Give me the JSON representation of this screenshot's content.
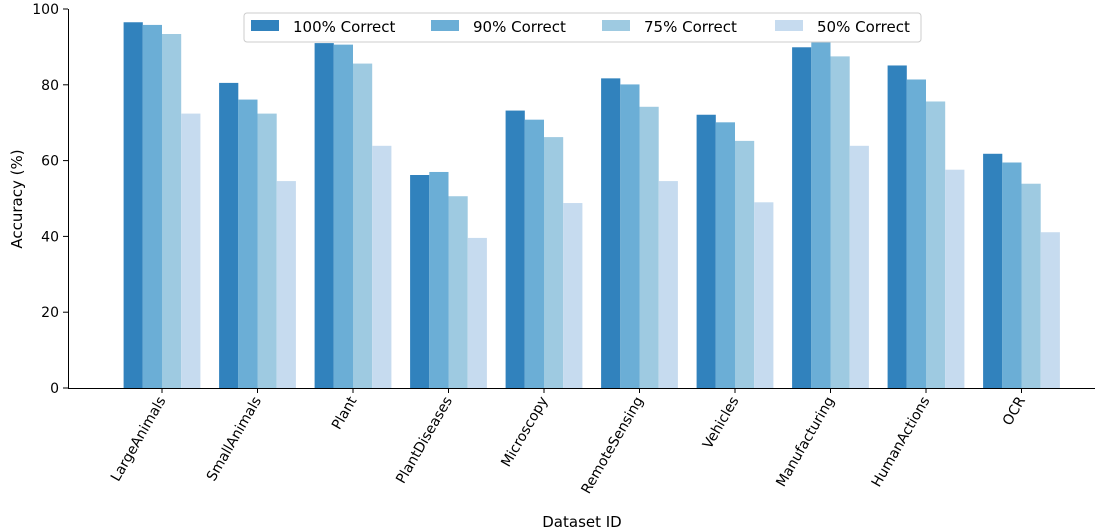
{
  "chart_data": {
    "type": "bar",
    "title": "",
    "xlabel": "Dataset ID",
    "ylabel": "Accuracy (%)",
    "ylim": [
      0,
      100
    ],
    "yticks": [
      0,
      20,
      40,
      60,
      80,
      100
    ],
    "grid": false,
    "legend_position": "top-center",
    "categories": [
      "LargeAnimals",
      "SmallAnimals",
      "Plant",
      "PlantDiseases",
      "Microscopy",
      "RemoteSensing",
      "Vehicles",
      "Manufacturing",
      "HumanActions",
      "OCR"
    ],
    "series": [
      {
        "name": "100% Correct",
        "color": "#3182bd",
        "values": [
          96.5,
          80.5,
          91,
          56.2,
          73.2,
          81.7,
          72.1,
          89.9,
          85.1,
          61.8
        ]
      },
      {
        "name": "90% Correct",
        "color": "#6baed6",
        "values": [
          95.8,
          76.1,
          90.6,
          57,
          70.8,
          80.1,
          70.1,
          91.5,
          81.4,
          59.5
        ]
      },
      {
        "name": "75% Correct",
        "color": "#9ecae1",
        "values": [
          93.4,
          72.4,
          85.6,
          50.6,
          66.2,
          74.2,
          65.2,
          87.5,
          75.6,
          53.9
        ]
      },
      {
        "name": "50% Correct",
        "color": "#c6dbef",
        "values": [
          72.4,
          54.6,
          63.9,
          39.6,
          48.8,
          54.6,
          49,
          63.9,
          57.6,
          41.1
        ]
      }
    ]
  }
}
